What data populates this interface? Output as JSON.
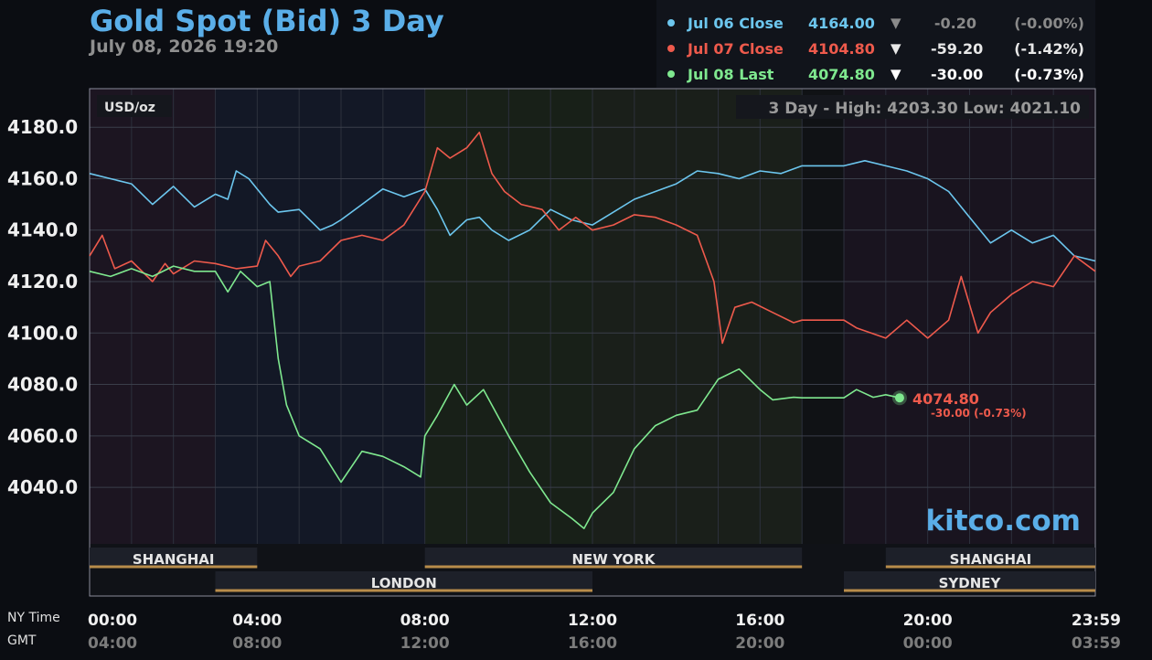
{
  "header": {
    "title": "Gold Spot (Bid) 3 Day",
    "subtitle": "July 08, 2026 19:20"
  },
  "legend": [
    {
      "name": "Jul 06 Close",
      "price": "4164.00",
      "arrow": "▼",
      "change": "-0.20",
      "pct": "(-0.00%)",
      "color": "#6cc6ee",
      "dim": true
    },
    {
      "name": "Jul 07 Close",
      "price": "4104.80",
      "arrow": "▼",
      "change": "-59.20",
      "pct": "(-1.42%)",
      "color": "#ee5a4c",
      "dim": false
    },
    {
      "name": "Jul 08 Last",
      "price": "4074.80",
      "arrow": "▼",
      "change": "-30.00",
      "pct": "(-0.73%)",
      "color": "#7fe88f",
      "dim": false
    }
  ],
  "chart_data": {
    "type": "line",
    "title": "Gold Spot (Bid) 3 Day",
    "unit_label": "USD/oz",
    "range_label": "3 Day - High: 4203.30  Low: 4021.10",
    "watermark": "kitco.com",
    "ylim": [
      4018,
      4195
    ],
    "y_ticks": [
      4040,
      4060,
      4080,
      4100,
      4120,
      4140,
      4160,
      4180
    ],
    "y_tick_labels": [
      "4040.0",
      "4060.0",
      "4080.0",
      "4100.0",
      "4120.0",
      "4140.0",
      "4160.0",
      "4180.0"
    ],
    "x_range_hours": [
      0,
      24
    ],
    "x_ticks": [
      {
        "t": 0,
        "ny": "00:00",
        "gmt": "04:00"
      },
      {
        "t": 4,
        "ny": "04:00",
        "gmt": "08:00"
      },
      {
        "t": 8,
        "ny": "08:00",
        "gmt": "12:00"
      },
      {
        "t": 12,
        "ny": "12:00",
        "gmt": "16:00"
      },
      {
        "t": 16,
        "ny": "16:00",
        "gmt": "20:00"
      },
      {
        "t": 20,
        "ny": "20:00",
        "gmt": "00:00"
      },
      {
        "t": 24,
        "ny": "23:59",
        "gmt": "03:59"
      }
    ],
    "time_row_labels": {
      "ny": "NY Time",
      "gmt": "GMT"
    },
    "last_point": {
      "x": 19.33,
      "y": 4074.8,
      "label": "4074.80",
      "sub": "-30.00 (-0.73%)"
    },
    "series": [
      {
        "name": "Jul 06 Close",
        "color": "#6cc6ee",
        "x": [
          0,
          0.5,
          1,
          1.5,
          2,
          2.5,
          3,
          3.3,
          3.5,
          3.8,
          4,
          4.3,
          4.5,
          5,
          5.5,
          5.8,
          6,
          6.5,
          7,
          7.5,
          8,
          8.3,
          8.6,
          9,
          9.3,
          9.6,
          10,
          10.5,
          11,
          11.5,
          12,
          12.5,
          13,
          13.5,
          14,
          14.5,
          15,
          15.5,
          16,
          16.5,
          17,
          17.5,
          18,
          18.5,
          19,
          19.5,
          20,
          20.5,
          21,
          21.5,
          22,
          22.5,
          23,
          23.5,
          24
        ],
        "y": [
          4162,
          4160,
          4158,
          4150,
          4157,
          4149,
          4154,
          4152,
          4163,
          4160,
          4156,
          4150,
          4147,
          4148,
          4140,
          4142,
          4144,
          4150,
          4156,
          4153,
          4156,
          4148,
          4138,
          4144,
          4145,
          4140,
          4136,
          4140,
          4148,
          4144,
          4142,
          4147,
          4152,
          4155,
          4158,
          4163,
          4162,
          4160,
          4163,
          4162,
          4165,
          4165,
          4165,
          4167,
          4165,
          4163,
          4160,
          4155,
          4145,
          4135,
          4140,
          4135,
          4138,
          4130,
          4128
        ]
      },
      {
        "name": "Jul 07 Close",
        "color": "#ee5a4c",
        "x": [
          0,
          0.3,
          0.6,
          1,
          1.5,
          1.8,
          2,
          2.5,
          3,
          3.5,
          4,
          4.2,
          4.5,
          4.8,
          5,
          5.5,
          6,
          6.5,
          7,
          7.5,
          8,
          8.3,
          8.6,
          9,
          9.3,
          9.6,
          9.9,
          10.3,
          10.8,
          11.2,
          11.6,
          12,
          12.5,
          13,
          13.5,
          14,
          14.5,
          14.9,
          15.1,
          15.4,
          15.8,
          16.3,
          16.8,
          17,
          17.5,
          18,
          18.3,
          19,
          19.5,
          20,
          20.5,
          20.8,
          21.2,
          21.5,
          22,
          22.5,
          23,
          23.5,
          24
        ],
        "y": [
          4130,
          4138,
          4125,
          4128,
          4120,
          4127,
          4123,
          4128,
          4127,
          4125,
          4126,
          4136,
          4130,
          4122,
          4126,
          4128,
          4136,
          4138,
          4136,
          4142,
          4155,
          4172,
          4168,
          4172,
          4178,
          4162,
          4155,
          4150,
          4148,
          4140,
          4145,
          4140,
          4142,
          4146,
          4145,
          4142,
          4138,
          4120,
          4096,
          4110,
          4112,
          4108,
          4104,
          4105,
          4105,
          4105,
          4102,
          4098,
          4105,
          4098,
          4105,
          4122,
          4100,
          4108,
          4115,
          4120,
          4118,
          4130,
          4124
        ]
      },
      {
        "name": "Jul 08 Last",
        "color": "#7fe88f",
        "x": [
          0,
          0.5,
          1,
          1.5,
          2,
          2.5,
          3,
          3.3,
          3.6,
          4,
          4.3,
          4.5,
          4.7,
          5,
          5.5,
          6,
          6.5,
          7,
          7.5,
          7.9,
          8,
          8.3,
          8.7,
          9,
          9.4,
          10,
          10.5,
          11,
          11.5,
          11.8,
          12,
          12.5,
          13,
          13.5,
          14,
          14.5,
          15,
          15.5,
          16,
          16.3,
          16.8,
          17,
          17.5,
          18,
          18.3,
          18.7,
          19,
          19.33
        ],
        "y": [
          4124,
          4122,
          4125,
          4122,
          4126,
          4124,
          4124,
          4116,
          4124,
          4118,
          4120,
          4090,
          4072,
          4060,
          4055,
          4042,
          4054,
          4052,
          4048,
          4044,
          4060,
          4068,
          4080,
          4072,
          4078,
          4060,
          4046,
          4034,
          4028,
          4024,
          4030,
          4038,
          4055,
          4064,
          4068,
          4070,
          4082,
          4086,
          4078,
          4074,
          4075,
          4074.8,
          4074.8,
          4074.8,
          4078,
          4075,
          4076,
          4074.8
        ]
      }
    ],
    "sessions": [
      {
        "label": "SHANGHAI",
        "start": 0,
        "end": 4,
        "row": 1
      },
      {
        "label": "NEW YORK",
        "start": 8,
        "end": 17,
        "row": 1
      },
      {
        "label": "SHANGHAI",
        "start": 19,
        "end": 24,
        "row": 1
      },
      {
        "label": "LONDON",
        "start": 3,
        "end": 12,
        "row": 2
      },
      {
        "label": "SYDNEY",
        "start": 18,
        "end": 24,
        "row": 2
      }
    ]
  }
}
